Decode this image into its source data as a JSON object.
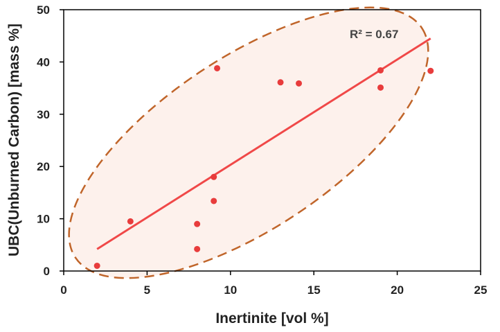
{
  "chart_data": {
    "type": "scatter",
    "title": "",
    "xlabel": "Inertinite [vol %]",
    "ylabel": "UBC(Unburned Carbon) [mass %]",
    "xlim": [
      0,
      25
    ],
    "ylim": [
      0,
      50
    ],
    "xticks": [
      0,
      5,
      10,
      15,
      20,
      25
    ],
    "yticks": [
      0,
      10,
      20,
      30,
      40,
      50
    ],
    "grid": false,
    "series": [
      {
        "name": "UBC vs Inertinite",
        "x": [
          2.0,
          4.0,
          8.0,
          8.0,
          9.0,
          9.0,
          9.2,
          13.0,
          14.1,
          19.0,
          19.0,
          22.0
        ],
        "y": [
          1.0,
          9.5,
          4.2,
          9.0,
          13.4,
          18.0,
          38.8,
          36.1,
          35.9,
          38.4,
          35.1,
          38.3
        ]
      }
    ],
    "trendline": {
      "type": "linear",
      "x": [
        2.0,
        22.0
      ],
      "y": [
        4.2,
        44.5
      ]
    },
    "annotation": "R² = 0.67",
    "colors": {
      "points": "#e83c3c",
      "trendline": "#f04848",
      "ellipse_stroke": "#c0652a",
      "ellipse_fill": "#fdf1ec",
      "axis": "#000000"
    }
  }
}
